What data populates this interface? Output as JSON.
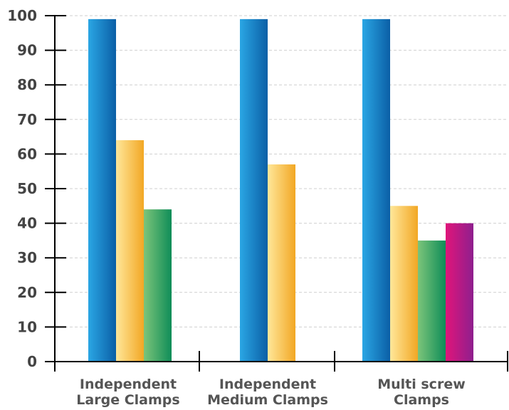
{
  "chart_data": {
    "type": "bar",
    "categories": [
      [
        "Independent",
        "Large Clamps"
      ],
      [
        "Independent",
        "Medium Clamps"
      ],
      [
        "Multi screw",
        "Clamps"
      ]
    ],
    "series": [
      {
        "color": "#0a78c2",
        "values": [
          99,
          99,
          99
        ]
      },
      {
        "color": "#f6b83a",
        "values": [
          64,
          57,
          45
        ]
      },
      {
        "color": "#1e9e5e",
        "values": [
          44,
          null,
          35
        ]
      },
      {
        "color": "#c4157e",
        "values": [
          null,
          null,
          40
        ]
      }
    ],
    "ylim": [
      0,
      100
    ],
    "yticks": [
      0,
      10,
      20,
      30,
      40,
      50,
      60,
      70,
      80,
      90,
      100
    ],
    "grid": true,
    "legend": "none"
  }
}
